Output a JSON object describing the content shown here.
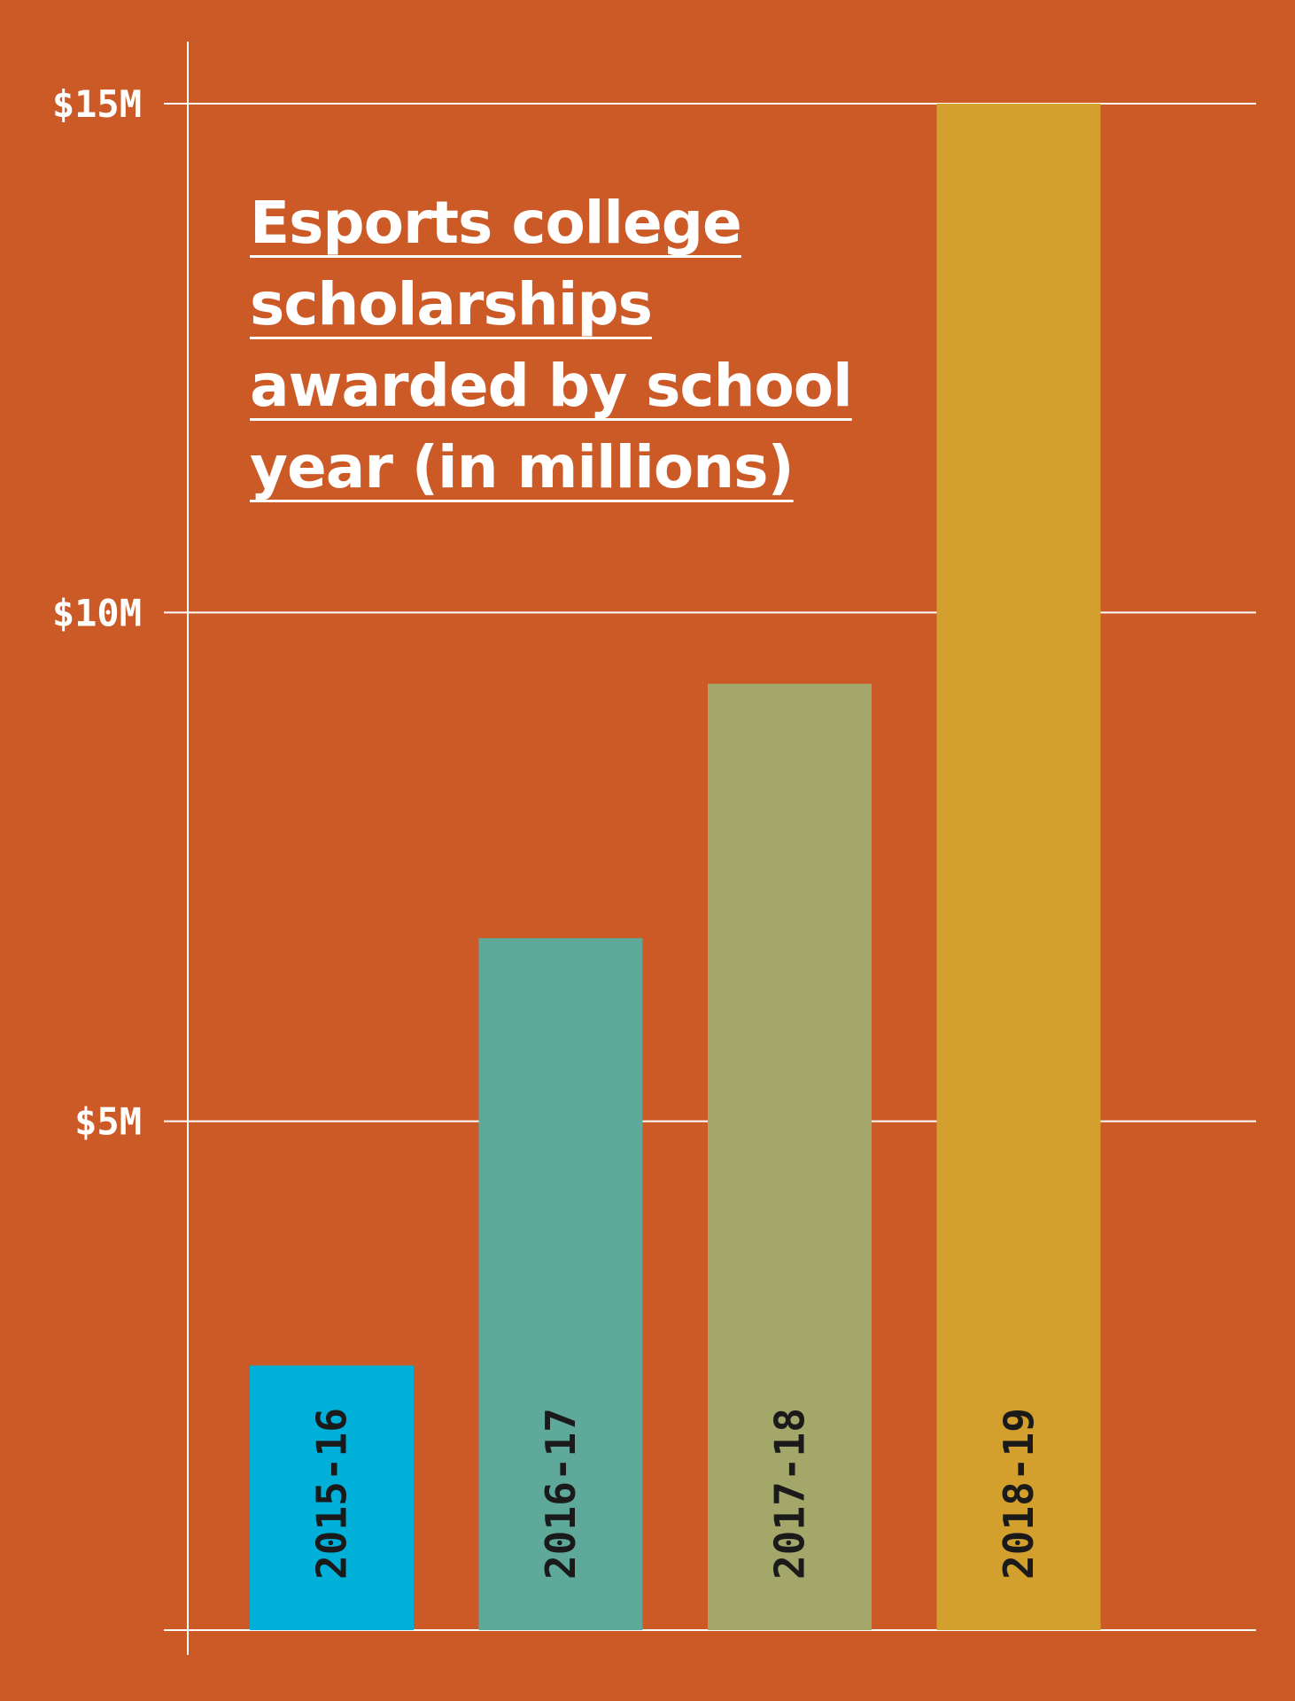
{
  "chart_data": {
    "type": "bar",
    "title": [
      "Esports college",
      "scholarships",
      "awarded by school",
      "year (in millions)"
    ],
    "categories": [
      "2015-16",
      "2016-17",
      "2017-18",
      "2018-19"
    ],
    "values": [
      2.6,
      6.8,
      9.3,
      15
    ],
    "ylim": [
      0,
      15
    ],
    "yticks": [
      {
        "value": 5,
        "label": "$5M"
      },
      {
        "value": 10,
        "label": "$10M"
      },
      {
        "value": 15,
        "label": "$15M"
      }
    ],
    "grid": true,
    "colors": [
      "#00b0d8",
      "#5fa99a",
      "#a3a76a",
      "#d4a02d"
    ],
    "background": "#cc5a27",
    "axis_color": "#ffffff",
    "label_color": "#1a1a1a"
  }
}
